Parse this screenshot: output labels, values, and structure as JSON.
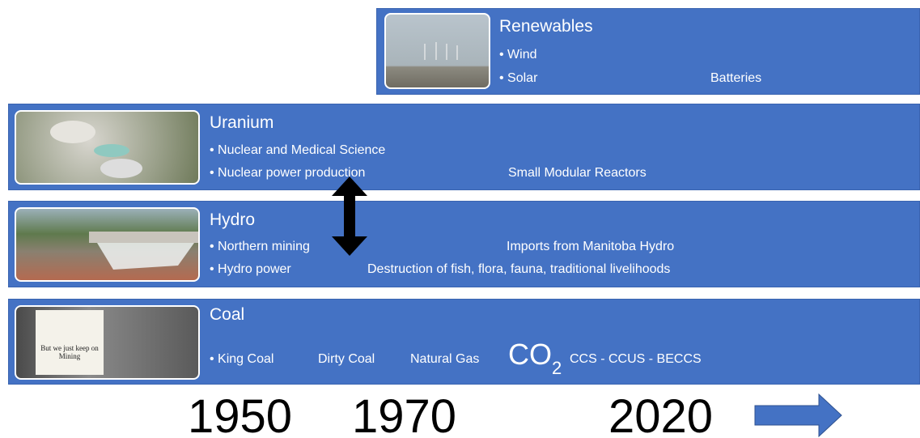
{
  "bands": [
    {
      "title": "Renewables",
      "lines": [
        "Wind",
        "Solar"
      ],
      "notes": [
        "Batteries"
      ]
    },
    {
      "title": "Uranium",
      "lines": [
        "Nuclear and Medical Science",
        "Nuclear power production"
      ],
      "notes": [
        "Small Modular Reactors"
      ]
    },
    {
      "title": "Hydro",
      "lines": [
        "Northern mining",
        "Hydro power"
      ],
      "notes": [
        "Imports from Manitoba Hydro",
        "Destruction of fish, flora, fauna, traditional livelihoods"
      ]
    },
    {
      "title": "Coal",
      "lines": [
        "King Coal"
      ],
      "notes": [
        "Dirty Coal",
        "Natural Gas",
        "CCS - CCUS - BECCS"
      ],
      "co2": {
        "main": "CO",
        "sub": "2"
      },
      "sign": "But we just keep on Mining"
    }
  ],
  "timeline": {
    "years": [
      "1950",
      "1970",
      "2020"
    ]
  }
}
